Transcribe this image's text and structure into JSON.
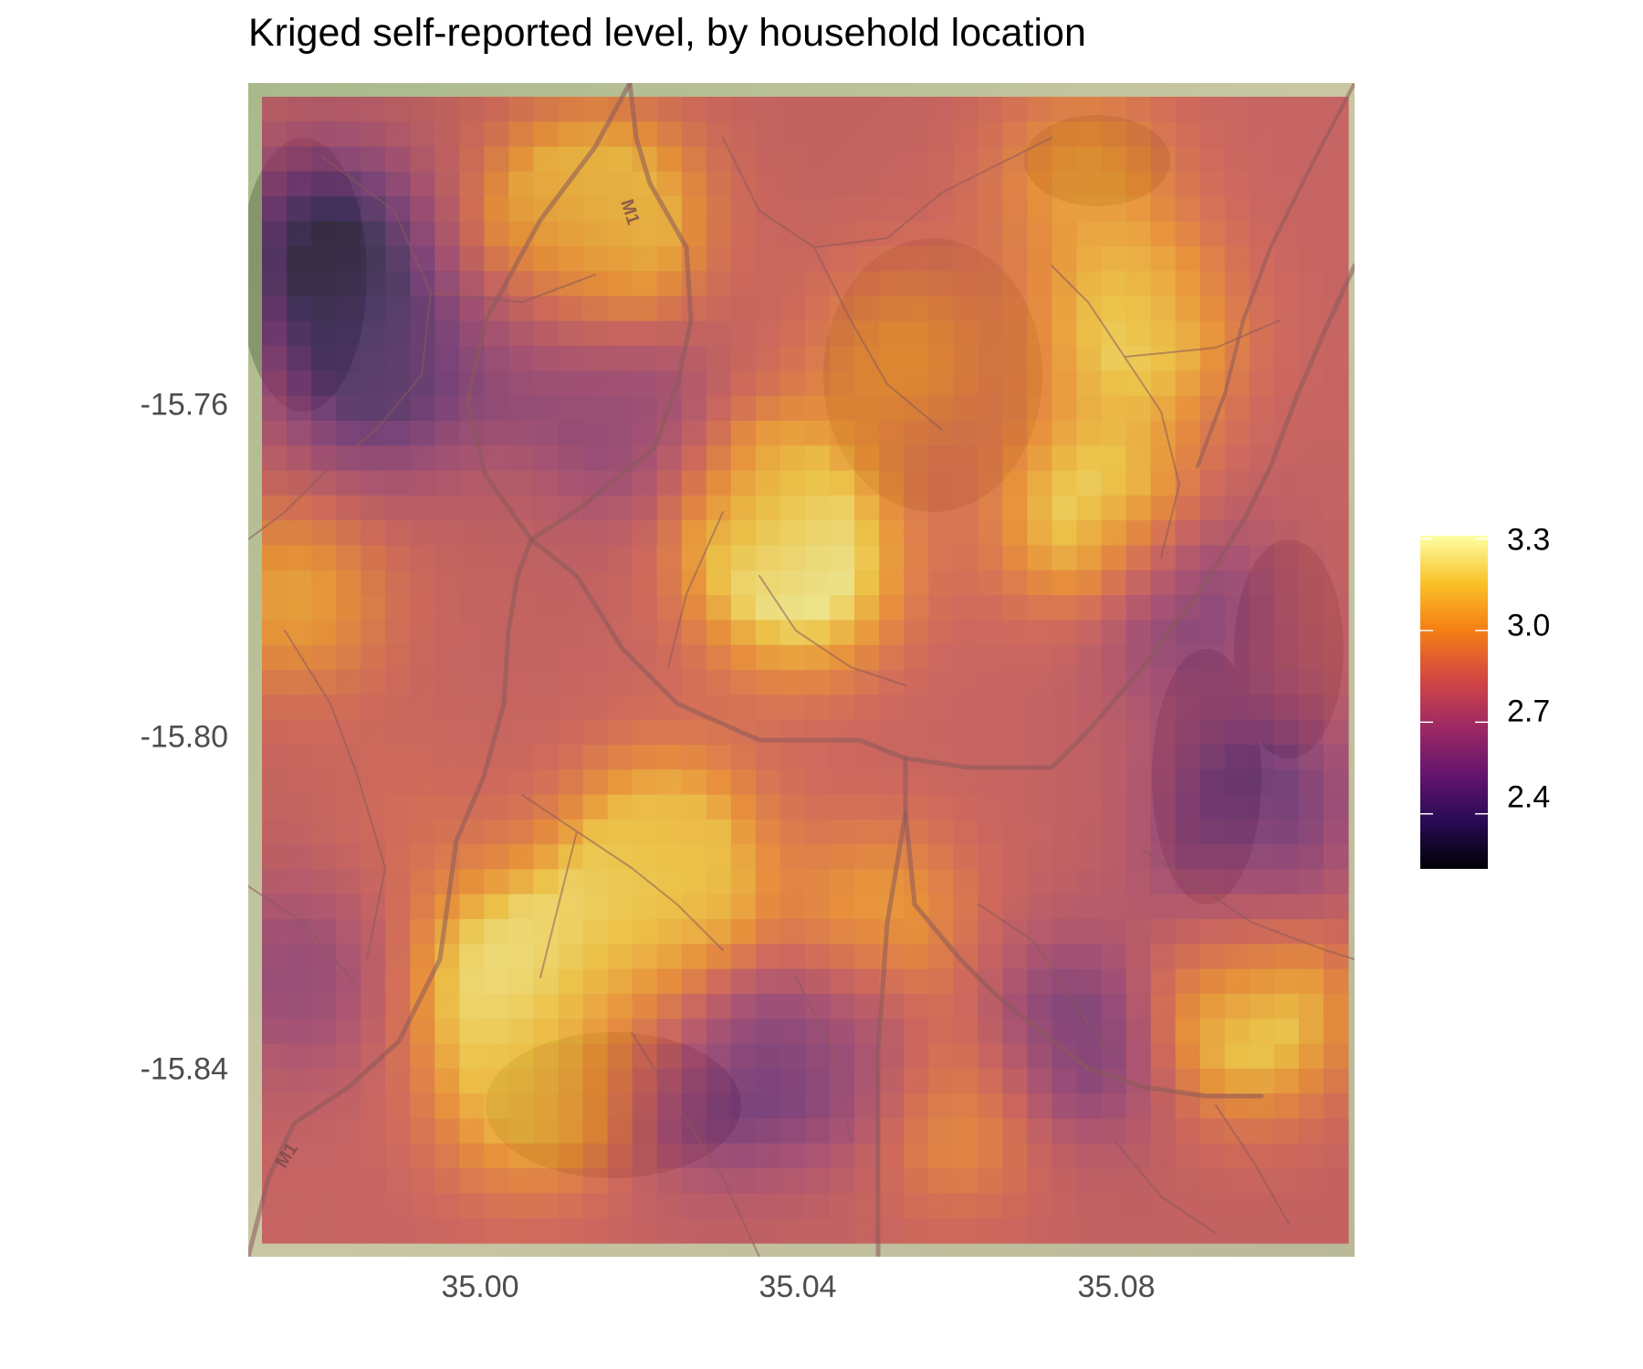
{
  "title": "Kriged self-reported level, by household location",
  "axes": {
    "x": {
      "ticks": [
        "35.00",
        "35.04",
        "35.08"
      ],
      "tick_values": [
        35.0,
        35.04,
        35.08
      ],
      "range": [
        34.971,
        35.11
      ]
    },
    "y": {
      "ticks": [
        "-15.76",
        "-15.80",
        "-15.84"
      ],
      "tick_values": [
        -15.76,
        -15.8,
        -15.84
      ],
      "range": [
        -15.865,
        -15.723
      ]
    }
  },
  "legend": {
    "labels": [
      "3.3",
      "3.0",
      "2.7",
      "2.4"
    ],
    "values": [
      3.3,
      3.0,
      2.7,
      2.4
    ],
    "range": [
      2.22,
      3.31
    ],
    "colormap": "inferno",
    "colors": [
      "#000004",
      "#280b54",
      "#65156e",
      "#9f2a63",
      "#d44842",
      "#f57d15",
      "#fac127",
      "#fcffa4"
    ]
  },
  "map": {
    "basemap": "terrain with road network",
    "road_labels": [
      "M1",
      "M1"
    ],
    "overlay_opacity": 0.55
  },
  "chart_data": {
    "type": "heatmap",
    "title": "Kriged self-reported level, by household location",
    "xlabel": "",
    "ylabel": "",
    "xlim": [
      34.971,
      35.11
    ],
    "ylim": [
      -15.865,
      -15.723
    ],
    "color_range": [
      2.22,
      3.31
    ],
    "baseline": 2.8,
    "hotspots": [
      {
        "lon": 34.98,
        "lat": -15.742,
        "value": 2.3
      },
      {
        "lon": 34.985,
        "lat": -15.758,
        "value": 2.42
      },
      {
        "lon": 35.005,
        "lat": -15.755,
        "value": 2.62
      },
      {
        "lon": 35.01,
        "lat": -15.74,
        "value": 3.05
      },
      {
        "lon": 35.015,
        "lat": -15.738,
        "value": 3.15
      },
      {
        "lon": 35.02,
        "lat": -15.765,
        "value": 2.6
      },
      {
        "lon": 35.035,
        "lat": -15.773,
        "value": 3.12
      },
      {
        "lon": 35.04,
        "lat": -15.782,
        "value": 3.3
      },
      {
        "lon": 35.053,
        "lat": -15.755,
        "value": 3.0
      },
      {
        "lon": 35.076,
        "lat": -15.733,
        "value": 3.02
      },
      {
        "lon": 35.083,
        "lat": -15.752,
        "value": 3.2
      },
      {
        "lon": 35.078,
        "lat": -15.775,
        "value": 3.26
      },
      {
        "lon": 35.088,
        "lat": -15.785,
        "value": 2.52
      },
      {
        "lon": 35.098,
        "lat": -15.81,
        "value": 2.48
      },
      {
        "lon": 35.095,
        "lat": -15.825,
        "value": 2.65
      },
      {
        "lon": 35.097,
        "lat": -15.836,
        "value": 3.3
      },
      {
        "lon": 35.075,
        "lat": -15.84,
        "value": 2.48
      },
      {
        "lon": 35.045,
        "lat": -15.842,
        "value": 2.55
      },
      {
        "lon": 35.028,
        "lat": -15.843,
        "value": 2.42
      },
      {
        "lon": 35.018,
        "lat": -15.838,
        "value": 3.02
      },
      {
        "lon": 35.003,
        "lat": -15.832,
        "value": 3.3
      },
      {
        "lon": 35.005,
        "lat": -15.847,
        "value": 3.1
      },
      {
        "lon": 35.02,
        "lat": -15.825,
        "value": 3.25
      },
      {
        "lon": 35.023,
        "lat": -15.815,
        "value": 3.1
      },
      {
        "lon": 35.06,
        "lat": -15.848,
        "value": 3.05
      },
      {
        "lon": 34.975,
        "lat": -15.785,
        "value": 3.05
      },
      {
        "lon": 34.976,
        "lat": -15.832,
        "value": 2.62
      },
      {
        "lon": 35.05,
        "lat": -15.825,
        "value": 3.05
      },
      {
        "lon": 34.99,
        "lat": -15.813,
        "value": 2.85
      },
      {
        "lon": 35.1,
        "lat": -15.745,
        "value": 2.8
      }
    ]
  }
}
